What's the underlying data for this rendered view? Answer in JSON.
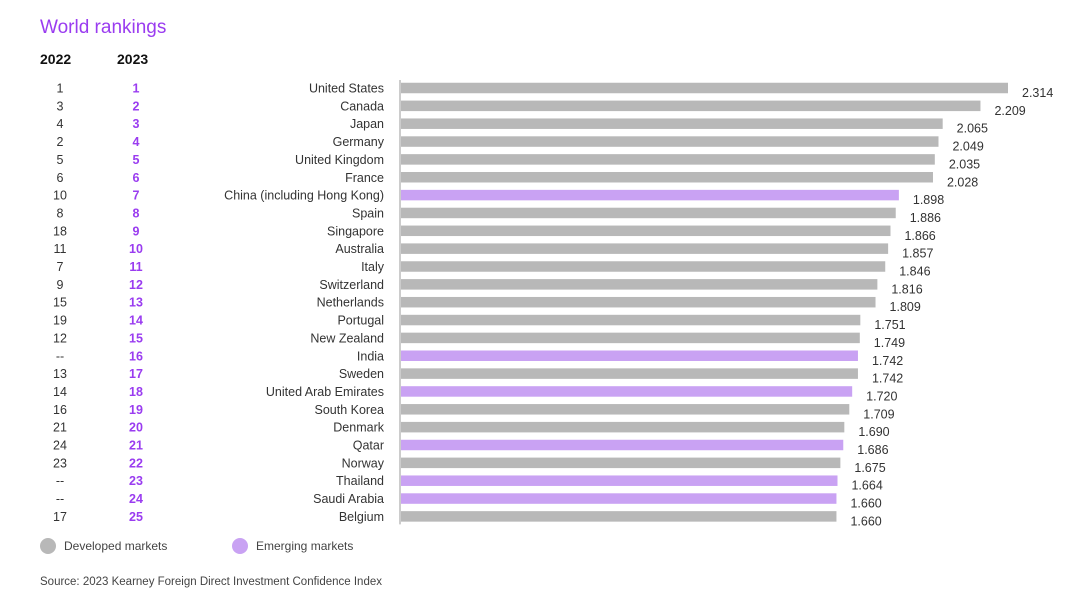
{
  "title": "World rankings",
  "rank_headers": {
    "prev": "2022",
    "curr": "2023"
  },
  "legend": {
    "developed": {
      "label": "Developed markets",
      "color": "#b8b8b8"
    },
    "emerging": {
      "label": "Emerging markets",
      "color": "#c9a2f3"
    }
  },
  "accent_color": "#9a3cf0",
  "source": "Source: 2023 Kearney Foreign Direct Investment Confidence Index",
  "chart_data": {
    "type": "bar",
    "orientation": "horizontal",
    "xlim": [
      0,
      2.314
    ],
    "categories": [
      "United States",
      "Canada",
      "Japan",
      "Germany",
      "United Kingdom",
      "France",
      "China (including Hong Kong)",
      "Spain",
      "Singapore",
      "Australia",
      "Italy",
      "Switzerland",
      "Netherlands",
      "Portugal",
      "New Zealand",
      "India",
      "Sweden",
      "United Arab Emirates",
      "South Korea",
      "Denmark",
      "Qatar",
      "Norway",
      "Thailand",
      "Saudi Arabia",
      "Belgium"
    ],
    "values": [
      2.314,
      2.209,
      2.065,
      2.049,
      2.035,
      2.028,
      1.898,
      1.886,
      1.866,
      1.857,
      1.846,
      1.816,
      1.809,
      1.751,
      1.749,
      1.742,
      1.742,
      1.72,
      1.709,
      1.69,
      1.686,
      1.675,
      1.664,
      1.66,
      1.66
    ],
    "value_labels": [
      "2.314",
      "2.209",
      "2.065",
      "2.049",
      "2.035",
      "2.028",
      "1.898",
      "1.886",
      "1.866",
      "1.857",
      "1.846",
      "1.816",
      "1.809",
      "1.751",
      "1.749",
      "1.742",
      "1.742",
      "1.720",
      "1.709",
      "1.690",
      "1.686",
      "1.675",
      "1.664",
      "1.660",
      "1.660"
    ],
    "market": [
      "developed",
      "developed",
      "developed",
      "developed",
      "developed",
      "developed",
      "emerging",
      "developed",
      "developed",
      "developed",
      "developed",
      "developed",
      "developed",
      "developed",
      "developed",
      "emerging",
      "developed",
      "emerging",
      "developed",
      "developed",
      "emerging",
      "developed",
      "emerging",
      "emerging",
      "developed"
    ],
    "rank_2022": [
      "1",
      "3",
      "4",
      "2",
      "5",
      "6",
      "10",
      "8",
      "18",
      "11",
      "7",
      "9",
      "15",
      "19",
      "12",
      "--",
      "13",
      "14",
      "16",
      "21",
      "24",
      "23",
      "--",
      "--",
      "17"
    ],
    "rank_2023": [
      "1",
      "2",
      "3",
      "4",
      "5",
      "6",
      "7",
      "8",
      "9",
      "10",
      "11",
      "12",
      "13",
      "14",
      "15",
      "16",
      "17",
      "18",
      "19",
      "20",
      "21",
      "22",
      "23",
      "24",
      "25"
    ],
    "legend_placement": "bottom-left",
    "grid": false
  }
}
